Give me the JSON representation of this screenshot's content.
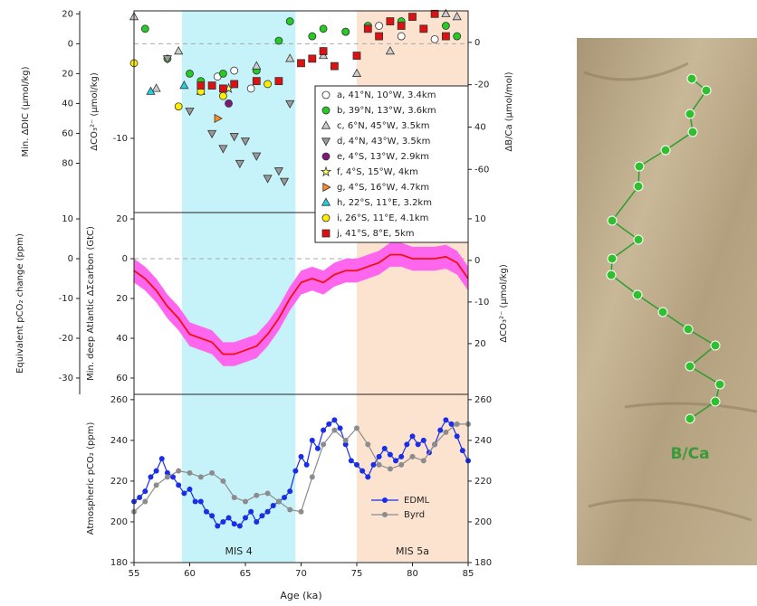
{
  "chart_data": [
    {
      "type": "scatter",
      "xlim": [
        55,
        85
      ],
      "ylabel": "Min. ΔDIC (μmol/kg)",
      "ylim": [
        113,
        -22
      ],
      "yticks": [
        {
          "value": -20,
          "label": "20"
        },
        0,
        20,
        40,
        60,
        80
      ],
      "y2label": "ΔCO₃²⁻ (μmol/kg)",
      "y2lim": [
        -17.8,
        3.4
      ],
      "y2ticks": [
        -10
      ],
      "y3label": "ΔB/Ca (μmol/mol)",
      "y3lim": [
        -80.4,
        14.9
      ],
      "y3ticks": [
        0,
        -20,
        {
          "value": -40,
          "label": "40"
        },
        -60
      ],
      "zero_line": true,
      "series": [
        {
          "name": "a, 41°N, 10°W, 3.4km",
          "marker": "circle",
          "color": "#ffffff",
          "x": [
            62.5,
            64,
            65.5,
            72,
            74,
            77,
            79,
            82
          ],
          "values": [
            22,
            18,
            30,
            5,
            -8,
            -12,
            -5,
            -3
          ]
        },
        {
          "name": "b, 39°N, 13°W, 3.6km",
          "marker": "circle",
          "color": "#22cc22",
          "x": [
            56,
            58,
            60,
            61,
            63,
            66,
            68,
            69,
            71,
            72,
            74,
            76,
            79,
            81,
            83,
            84
          ],
          "values": [
            -10,
            10,
            20,
            25,
            20,
            18,
            -2,
            -15,
            -5,
            -10,
            -8,
            -12,
            -15,
            -10,
            -12,
            -5
          ]
        },
        {
          "name": "c, 6°N, 45°W, 3.5km",
          "marker": "triangle-up",
          "color": "#cccccc",
          "x": [
            55,
            57,
            59,
            61,
            66,
            69,
            72,
            75,
            78,
            83,
            84
          ],
          "values": [
            -18,
            30,
            5,
            32,
            15,
            10,
            8,
            20,
            5,
            -20,
            -18
          ]
        },
        {
          "name": "d, 4°N, 43°W, 3.5km",
          "marker": "triangle-down",
          "color": "#999999",
          "x": [
            58,
            60,
            62,
            63,
            64,
            64.5,
            65,
            66,
            67,
            68,
            68.5,
            69
          ],
          "values": [
            10,
            45,
            60,
            70,
            62,
            80,
            65,
            75,
            90,
            85,
            92,
            40
          ]
        },
        {
          "name": "e, 4°S, 13°W, 2.9km",
          "marker": "circle",
          "color": "#7a1a7a",
          "x": [
            63.5
          ],
          "values": [
            40
          ]
        },
        {
          "name": "f, 4°S, 15°W, 4km",
          "marker": "star",
          "color": "#ffff66",
          "x": [
            63.5
          ],
          "values": [
            30
          ]
        },
        {
          "name": "g, 4°S, 16°W, 4.7km",
          "marker": "triangle-right",
          "color": "#ff8c1a",
          "x": [
            62.5
          ],
          "values": [
            50
          ]
        },
        {
          "name": "h, 22°S, 11°E, 3.2km",
          "marker": "triangle-up",
          "color": "#22d0e0",
          "x": [
            56.5,
            59.5
          ],
          "values": [
            32,
            28
          ]
        },
        {
          "name": "i, 26°S, 11°E, 4.1km",
          "marker": "circle",
          "color": "#ffee00",
          "x": [
            55,
            59,
            61,
            63,
            67
          ],
          "values": [
            13,
            42,
            32,
            35,
            27
          ]
        },
        {
          "name": "j, 41°S, 8°E, 5km",
          "marker": "square",
          "color": "#dd1111",
          "x": [
            61,
            62,
            63,
            64,
            66,
            68,
            70,
            71,
            72,
            73,
            75,
            76,
            77,
            78,
            79,
            80,
            81,
            82,
            83
          ],
          "values": [
            28,
            28,
            30,
            27,
            25,
            25,
            13,
            10,
            5,
            15,
            8,
            -10,
            -5,
            -15,
            -12,
            -18,
            -10,
            -20,
            -5
          ]
        }
      ]
    },
    {
      "type": "line",
      "xlim": [
        55,
        85
      ],
      "ylabel": "Equivalent pCO₂ change (ppm)",
      "ylim": [
        -34.1,
        11.6
      ],
      "yticks": [
        10,
        0,
        -10,
        -20,
        -30
      ],
      "y2label": "Min. deep Atlantic ΔΣcarbon (GtC)",
      "y2lim": [
        68.2,
        -23.2
      ],
      "y2ticks": [
        {
          "value": -20,
          "label": "20"
        },
        0,
        20,
        40,
        60
      ],
      "y3label": "ΔCO₃²⁻ (μmol/kg)",
      "y3lim": [
        -32.2,
        11.5
      ],
      "y3ticks": [
        10,
        0,
        -10,
        {
          "value": -20,
          "label": "20"
        }
      ],
      "zero_line": true,
      "series": [
        {
          "color": "#ee1111",
          "band_color": "#ff66ee",
          "x": [
            55,
            56,
            57,
            58,
            59,
            60,
            61,
            62,
            63,
            64,
            65,
            66,
            67,
            68,
            69,
            70,
            71,
            72,
            73,
            74,
            75,
            76,
            77,
            78,
            79,
            80,
            81,
            82,
            83,
            84,
            85
          ],
          "values": [
            -3,
            -5,
            -8,
            -12,
            -15,
            -19,
            -20,
            -21,
            -24,
            -24,
            -23,
            -22,
            -19,
            -15,
            -10,
            -6,
            -5,
            -6,
            -4,
            -3,
            -3,
            -2,
            -1,
            1,
            1,
            0,
            0,
            0,
            0.5,
            -1,
            -5
          ],
          "errors": [
            3,
            3,
            3,
            3,
            3,
            3,
            3,
            3,
            3,
            3,
            3,
            3,
            3,
            3,
            3,
            3,
            3,
            3,
            3,
            3,
            3,
            3,
            3,
            3,
            3,
            3,
            3,
            3,
            3,
            3,
            3
          ]
        }
      ]
    },
    {
      "type": "line",
      "xlim": [
        55,
        85
      ],
      "xticks": [
        55,
        60,
        65,
        70,
        75,
        80,
        85
      ],
      "xlabel": "Age (ka)",
      "ylabel": "Atmospheric pCO₂ (ppm)",
      "ylim": [
        180,
        262.6
      ],
      "yticks": [
        180,
        200,
        220,
        240,
        260
      ],
      "y2lim": [
        180,
        262.6
      ],
      "y2ticks": [
        180,
        200,
        220,
        240,
        260
      ],
      "shading": [
        {
          "label": "MIS 4",
          "xlim": [
            59.3,
            69.5
          ],
          "color": "#c6f3f9"
        },
        {
          "label": "MIS 5a",
          "xlim": [
            75,
            85
          ],
          "color": "#fbe3d0"
        }
      ],
      "series": [
        {
          "name": "EDML",
          "color": "#1a2ee6",
          "marker": "circle",
          "x": [
            55,
            55.5,
            56,
            56.5,
            57,
            57.5,
            58,
            58.5,
            59,
            59.5,
            60,
            60.5,
            61,
            61.5,
            62,
            62.5,
            63,
            63.5,
            64,
            64.5,
            65,
            65.5,
            66,
            66.5,
            67,
            67.5,
            68,
            68.5,
            69,
            69.5,
            70,
            70.5,
            71,
            71.5,
            72,
            72.5,
            73,
            73.5,
            74,
            74.5,
            75,
            75.5,
            76,
            76.5,
            77,
            77.5,
            78,
            78.5,
            79,
            79.5,
            80,
            80.5,
            81,
            81.5,
            82,
            82.5,
            83,
            83.5,
            84,
            84.5,
            85
          ],
          "values": [
            210,
            212,
            215,
            222,
            225,
            231,
            224,
            222,
            218,
            214,
            216,
            210,
            210,
            205,
            203,
            198,
            200,
            202,
            199,
            198,
            202,
            205,
            200,
            203,
            205,
            208,
            210,
            212,
            215,
            225,
            232,
            228,
            240,
            236,
            245,
            248,
            250,
            246,
            238,
            230,
            228,
            225,
            222,
            228,
            232,
            236,
            233,
            230,
            232,
            238,
            242,
            238,
            240,
            234,
            238,
            245,
            250,
            248,
            242,
            235,
            230
          ]
        },
        {
          "name": "Byrd",
          "color": "#8c8c8c",
          "marker": "circle",
          "x": [
            55,
            56,
            57,
            58,
            59,
            60,
            61,
            62,
            63,
            64,
            65,
            66,
            67,
            68,
            69,
            70,
            71,
            72,
            73,
            74,
            75,
            76,
            77,
            78,
            79,
            80,
            81,
            82,
            83,
            84,
            85
          ],
          "values": [
            205,
            210,
            218,
            222,
            225,
            224,
            222,
            224,
            220,
            212,
            210,
            213,
            214,
            210,
            206,
            205,
            222,
            238,
            245,
            240,
            246,
            238,
            228,
            226,
            228,
            232,
            230,
            238,
            244,
            248,
            248
          ]
        }
      ]
    }
  ],
  "photo": {
    "label": "B/Ca"
  }
}
